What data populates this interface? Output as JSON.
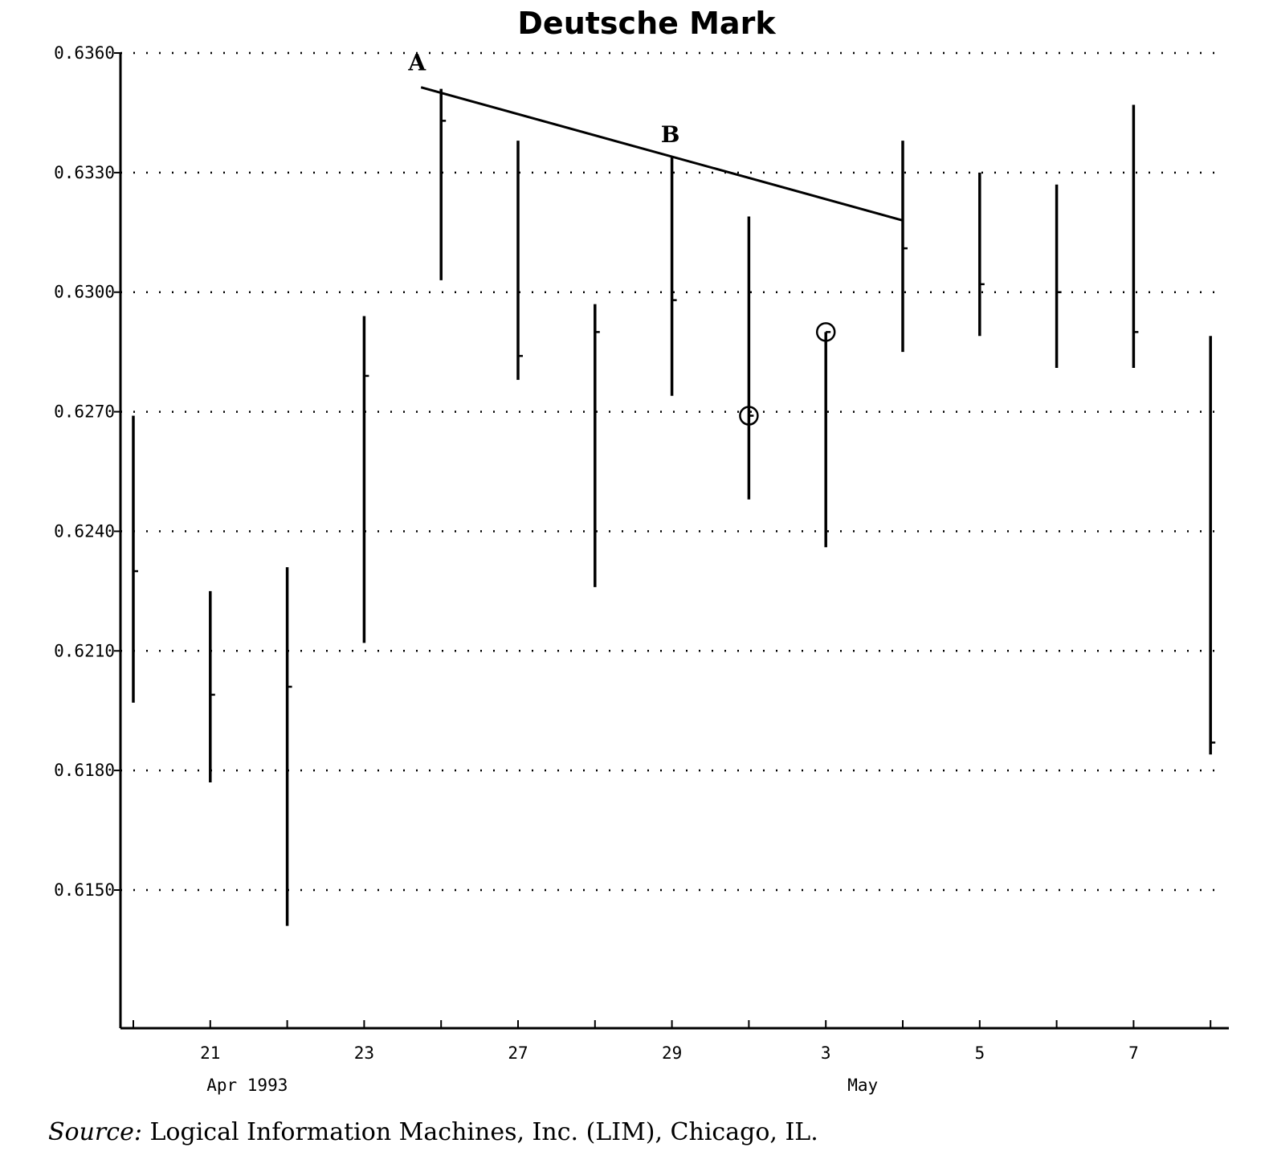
{
  "chart_data": {
    "type": "bar",
    "subtype": "high-low",
    "title": "Deutsche Mark",
    "xlabel": "",
    "ylabel": "",
    "ylim": [
      0.6115,
      0.6362
    ],
    "yticks": [
      "0.6360",
      "0.6330",
      "0.6300",
      "0.6270",
      "0.6240",
      "0.6210",
      "0.6180",
      "0.6150"
    ],
    "ytick_values": [
      0.636,
      0.633,
      0.63,
      0.627,
      0.624,
      0.621,
      0.618,
      0.615
    ],
    "grid": "horizontal dotted",
    "legend": "none",
    "x_tick_labels": [
      {
        "label": "21",
        "date": "1993-04-21"
      },
      {
        "label": "23",
        "date": "1993-04-23"
      },
      {
        "label": "27",
        "date": "1993-04-27"
      },
      {
        "label": "29",
        "date": "1993-04-29"
      },
      {
        "label": "3",
        "date": "1993-05-03"
      },
      {
        "label": "5",
        "date": "1993-05-05"
      },
      {
        "label": "7",
        "date": "1993-05-07"
      }
    ],
    "period_labels": [
      {
        "label": "Apr 1993",
        "date": "1993-04-21"
      },
      {
        "label": "May",
        "date": "1993-05-03"
      }
    ],
    "series": [
      {
        "dates": [
          "1993-04-20",
          "1993-04-21",
          "1993-04-22",
          "1993-04-23",
          "1993-04-26",
          "1993-04-27",
          "1993-04-28",
          "1993-04-29",
          "1993-04-30",
          "1993-05-03",
          "1993-05-04",
          "1993-05-05",
          "1993-05-06",
          "1993-05-07",
          "1993-05-10"
        ],
        "high": [
          0.6269,
          0.6225,
          0.6231,
          0.6294,
          0.6351,
          0.6338,
          0.6297,
          0.6334,
          0.6319,
          0.629,
          0.6338,
          0.633,
          0.6327,
          0.6347,
          0.6289
        ],
        "low": [
          0.6197,
          0.6177,
          0.6141,
          0.6212,
          0.6303,
          0.6278,
          0.6226,
          0.6274,
          0.6248,
          0.6236,
          0.6285,
          0.6289,
          0.6281,
          0.6281,
          0.6184
        ],
        "close": [
          0.623,
          0.6199,
          0.6201,
          0.6279,
          0.6343,
          0.6284,
          0.629,
          0.6298,
          0.6269,
          0.629,
          0.6311,
          0.6302,
          0.63,
          0.629,
          0.6187
        ]
      }
    ],
    "trendline": {
      "start": {
        "date": "1993-04-26",
        "value": 0.6352
      },
      "end": {
        "date": "1993-05-04",
        "value": 0.6318
      }
    },
    "annotations": [
      {
        "label": "A",
        "date": "1993-04-26",
        "value": 0.6352
      },
      {
        "label": "B",
        "date": "1993-04-29",
        "value": 0.6334
      }
    ],
    "circled_points": [
      {
        "date": "1993-04-30",
        "value": 0.6269
      },
      {
        "date": "1993-05-03",
        "value": 0.629
      }
    ]
  },
  "source": {
    "label": "Source:",
    "text": "Logical Information Machines, Inc. (LIM), Chicago, IL."
  }
}
